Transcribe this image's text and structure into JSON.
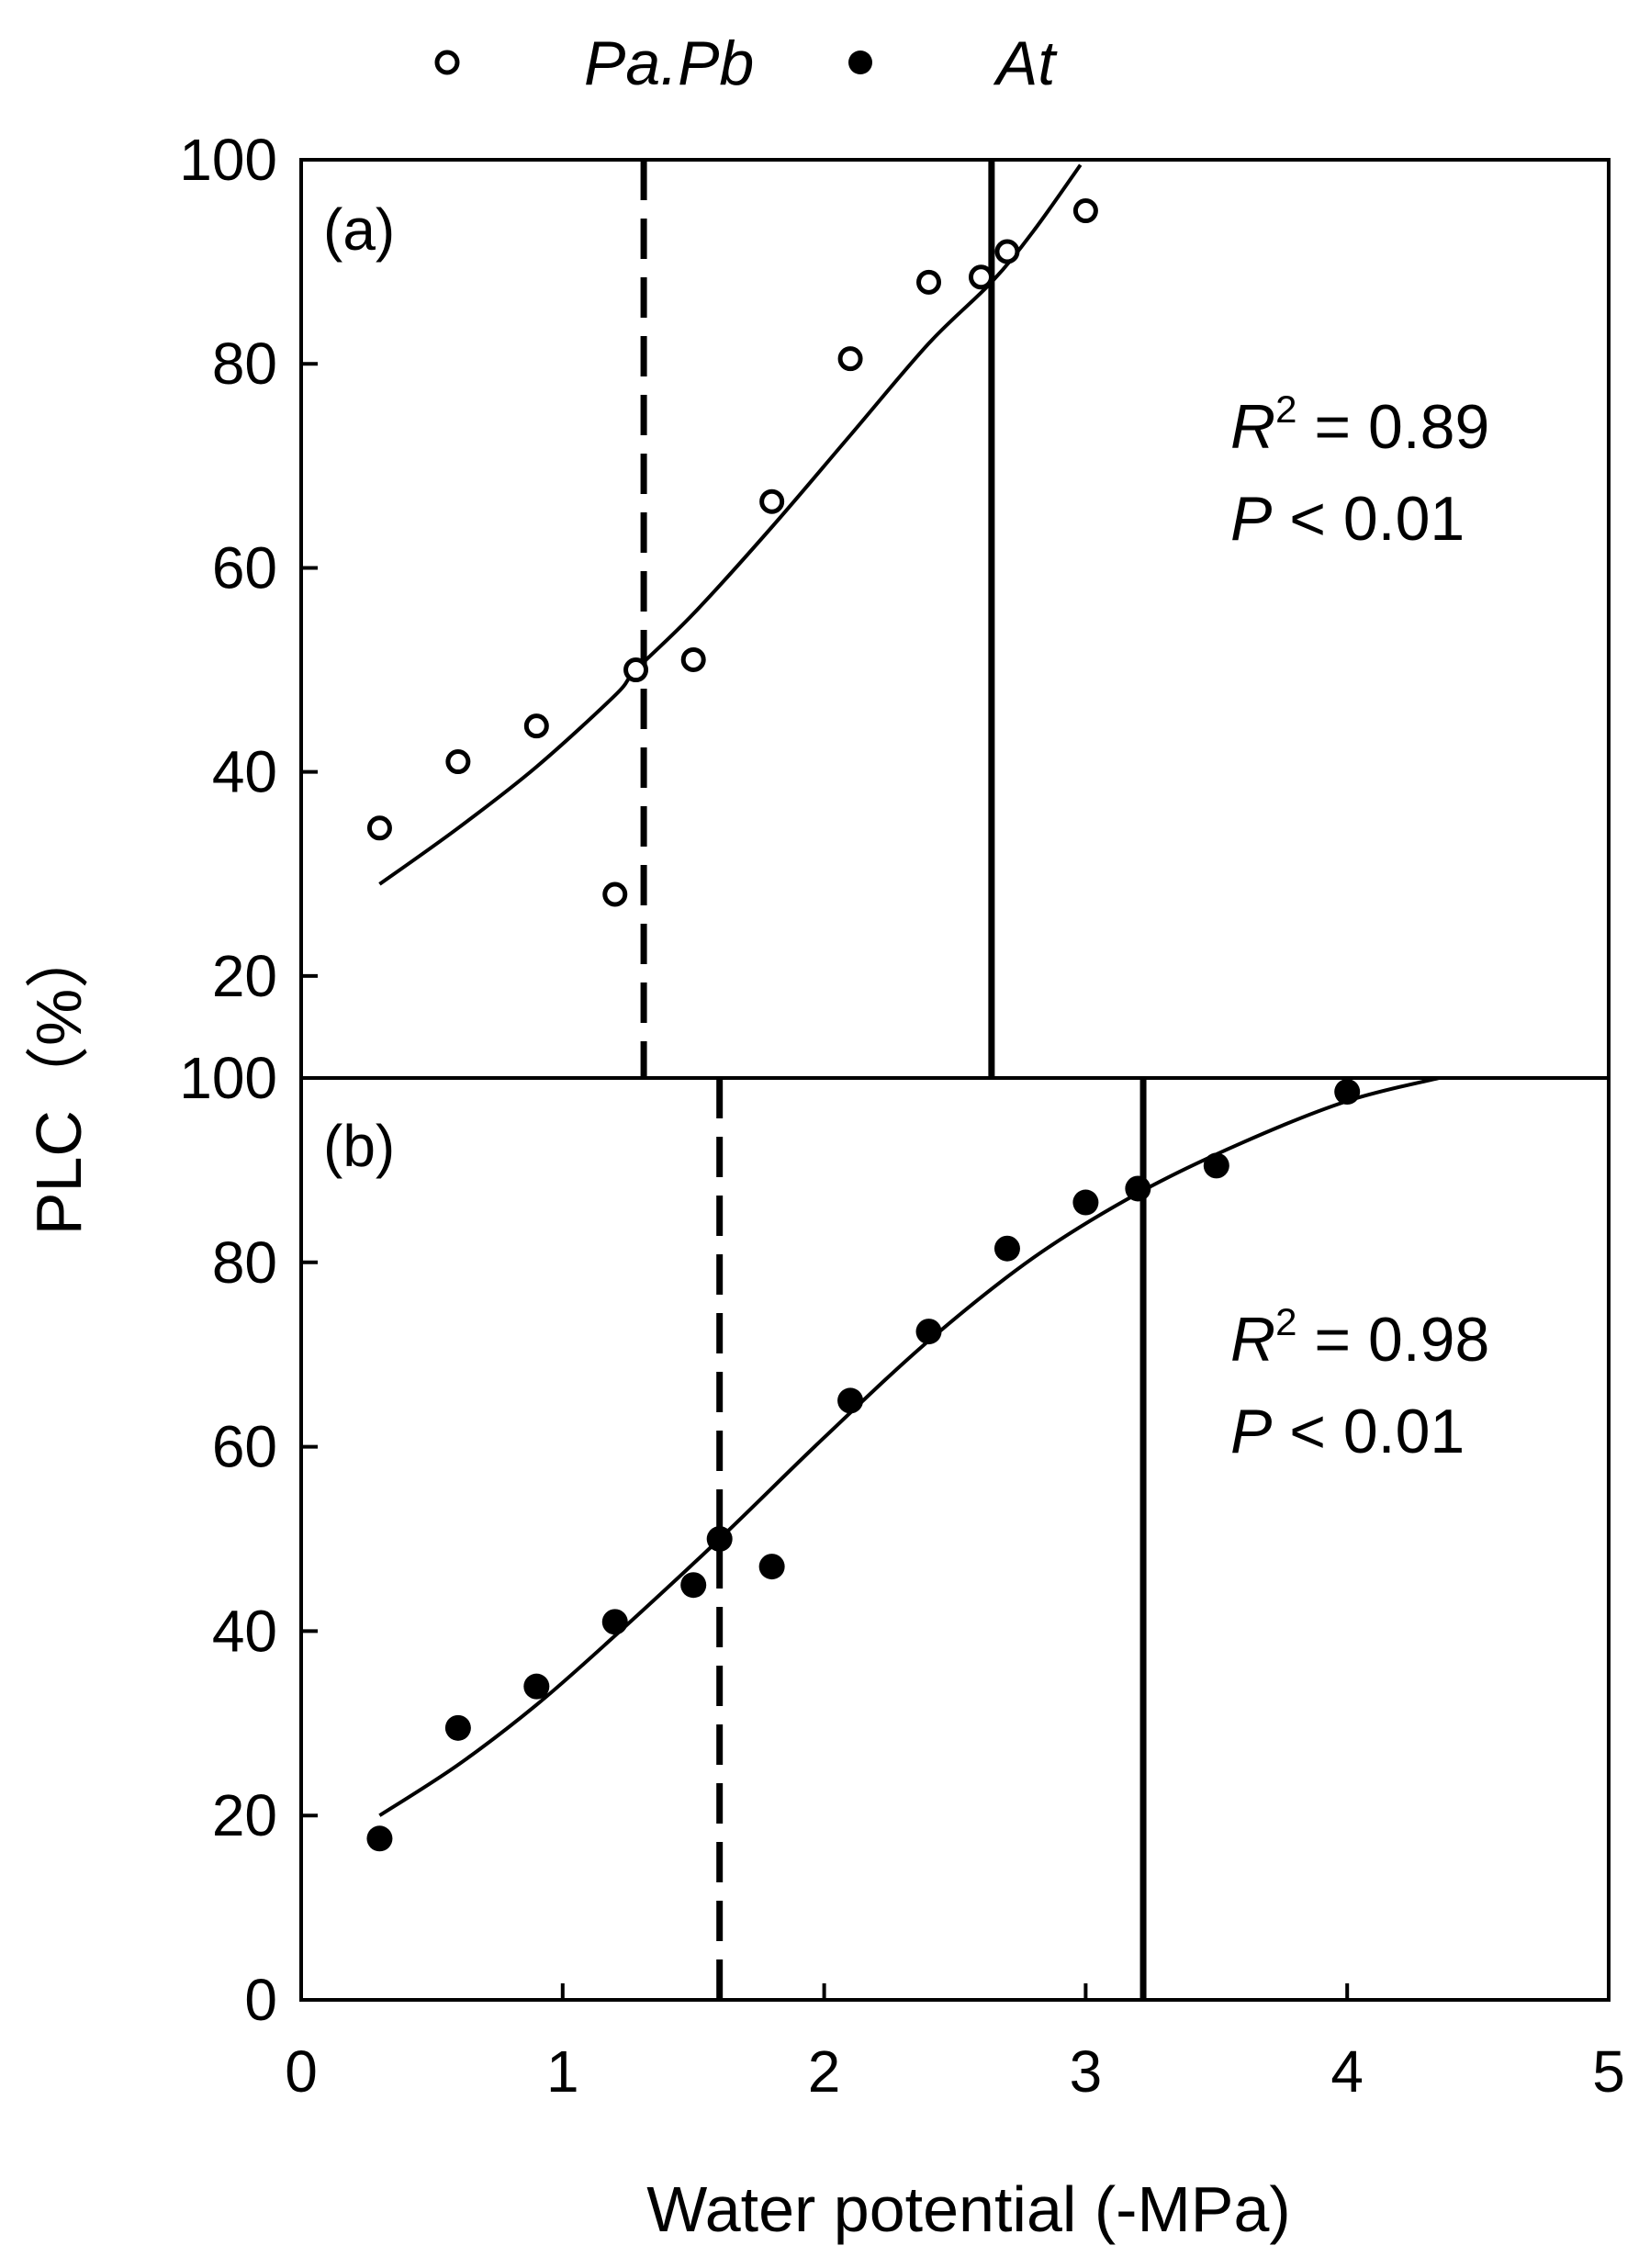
{
  "legend": {
    "items": [
      {
        "label": "Pa.Pb",
        "marker": "open-circle"
      },
      {
        "label": "At",
        "marker": "filled-circle"
      }
    ]
  },
  "axes": {
    "xlabel": "Water potential (-MPa)",
    "ylabel": "PLC（%）"
  },
  "colors": {
    "ink": "#000000",
    "background": "#ffffff"
  },
  "chart_data": [
    {
      "type": "scatter",
      "panel_label": "(a)",
      "series": [
        {
          "name": "Pa.Pb",
          "marker": "open-circle",
          "x": [
            0.3,
            0.6,
            0.9,
            1.2,
            1.28,
            1.5,
            1.8,
            2.1,
            2.4,
            2.6,
            2.7,
            3.0
          ],
          "y": [
            34.5,
            41,
            44.5,
            28,
            50,
            51,
            66.5,
            80.5,
            88,
            88.5,
            91,
            95
          ]
        }
      ],
      "fit_curve": {
        "x": [
          0.3,
          0.6,
          0.9,
          1.2,
          1.28,
          1.5,
          1.8,
          2.1,
          2.4,
          2.64,
          2.8,
          2.98
        ],
        "y": [
          29,
          34.5,
          40.5,
          47.5,
          50,
          55.5,
          64,
          73,
          82,
          88,
          93,
          99.5
        ]
      },
      "reference_lines": [
        {
          "style": "dashed",
          "x": 1.31
        },
        {
          "style": "solid",
          "x": 2.64
        }
      ],
      "stats": {
        "r2": "R2 = 0.89",
        "p": "P < 0.01"
      },
      "xlim": [
        0,
        5
      ],
      "ylim": [
        10,
        100
      ],
      "yticks": [
        "20",
        "40",
        "60",
        "80",
        "100"
      ]
    },
    {
      "type": "scatter",
      "panel_label": "(b)",
      "series": [
        {
          "name": "At",
          "marker": "filled-circle",
          "x": [
            0.3,
            0.6,
            0.9,
            1.2,
            1.5,
            1.6,
            1.8,
            2.1,
            2.4,
            2.7,
            3.0,
            3.2,
            3.5,
            4.0
          ],
          "y": [
            17.5,
            29.5,
            34,
            41,
            45,
            50,
            47,
            65,
            72.5,
            81.5,
            86.5,
            88,
            90.5,
            98.5
          ]
        }
      ],
      "fit_curve": {
        "x": [
          0.3,
          0.6,
          0.9,
          1.2,
          1.6,
          2.0,
          2.4,
          2.8,
          3.2,
          3.6,
          4.0,
          4.35
        ],
        "y": [
          20,
          25.5,
          32,
          39.5,
          50,
          61,
          71.5,
          80.5,
          87.5,
          93,
          97.5,
          100
        ]
      },
      "reference_lines": [
        {
          "style": "dashed",
          "x": 1.6
        },
        {
          "style": "solid",
          "x": 3.22
        }
      ],
      "stats": {
        "r2": "R2 = 0.98",
        "p": "P < 0.01"
      },
      "xlim": [
        0,
        5
      ],
      "ylim": [
        0,
        100
      ],
      "xticks": [
        "0",
        "1",
        "2",
        "3",
        "4",
        "5"
      ],
      "yticks": [
        "0",
        "20",
        "40",
        "60",
        "80",
        "100"
      ]
    }
  ]
}
